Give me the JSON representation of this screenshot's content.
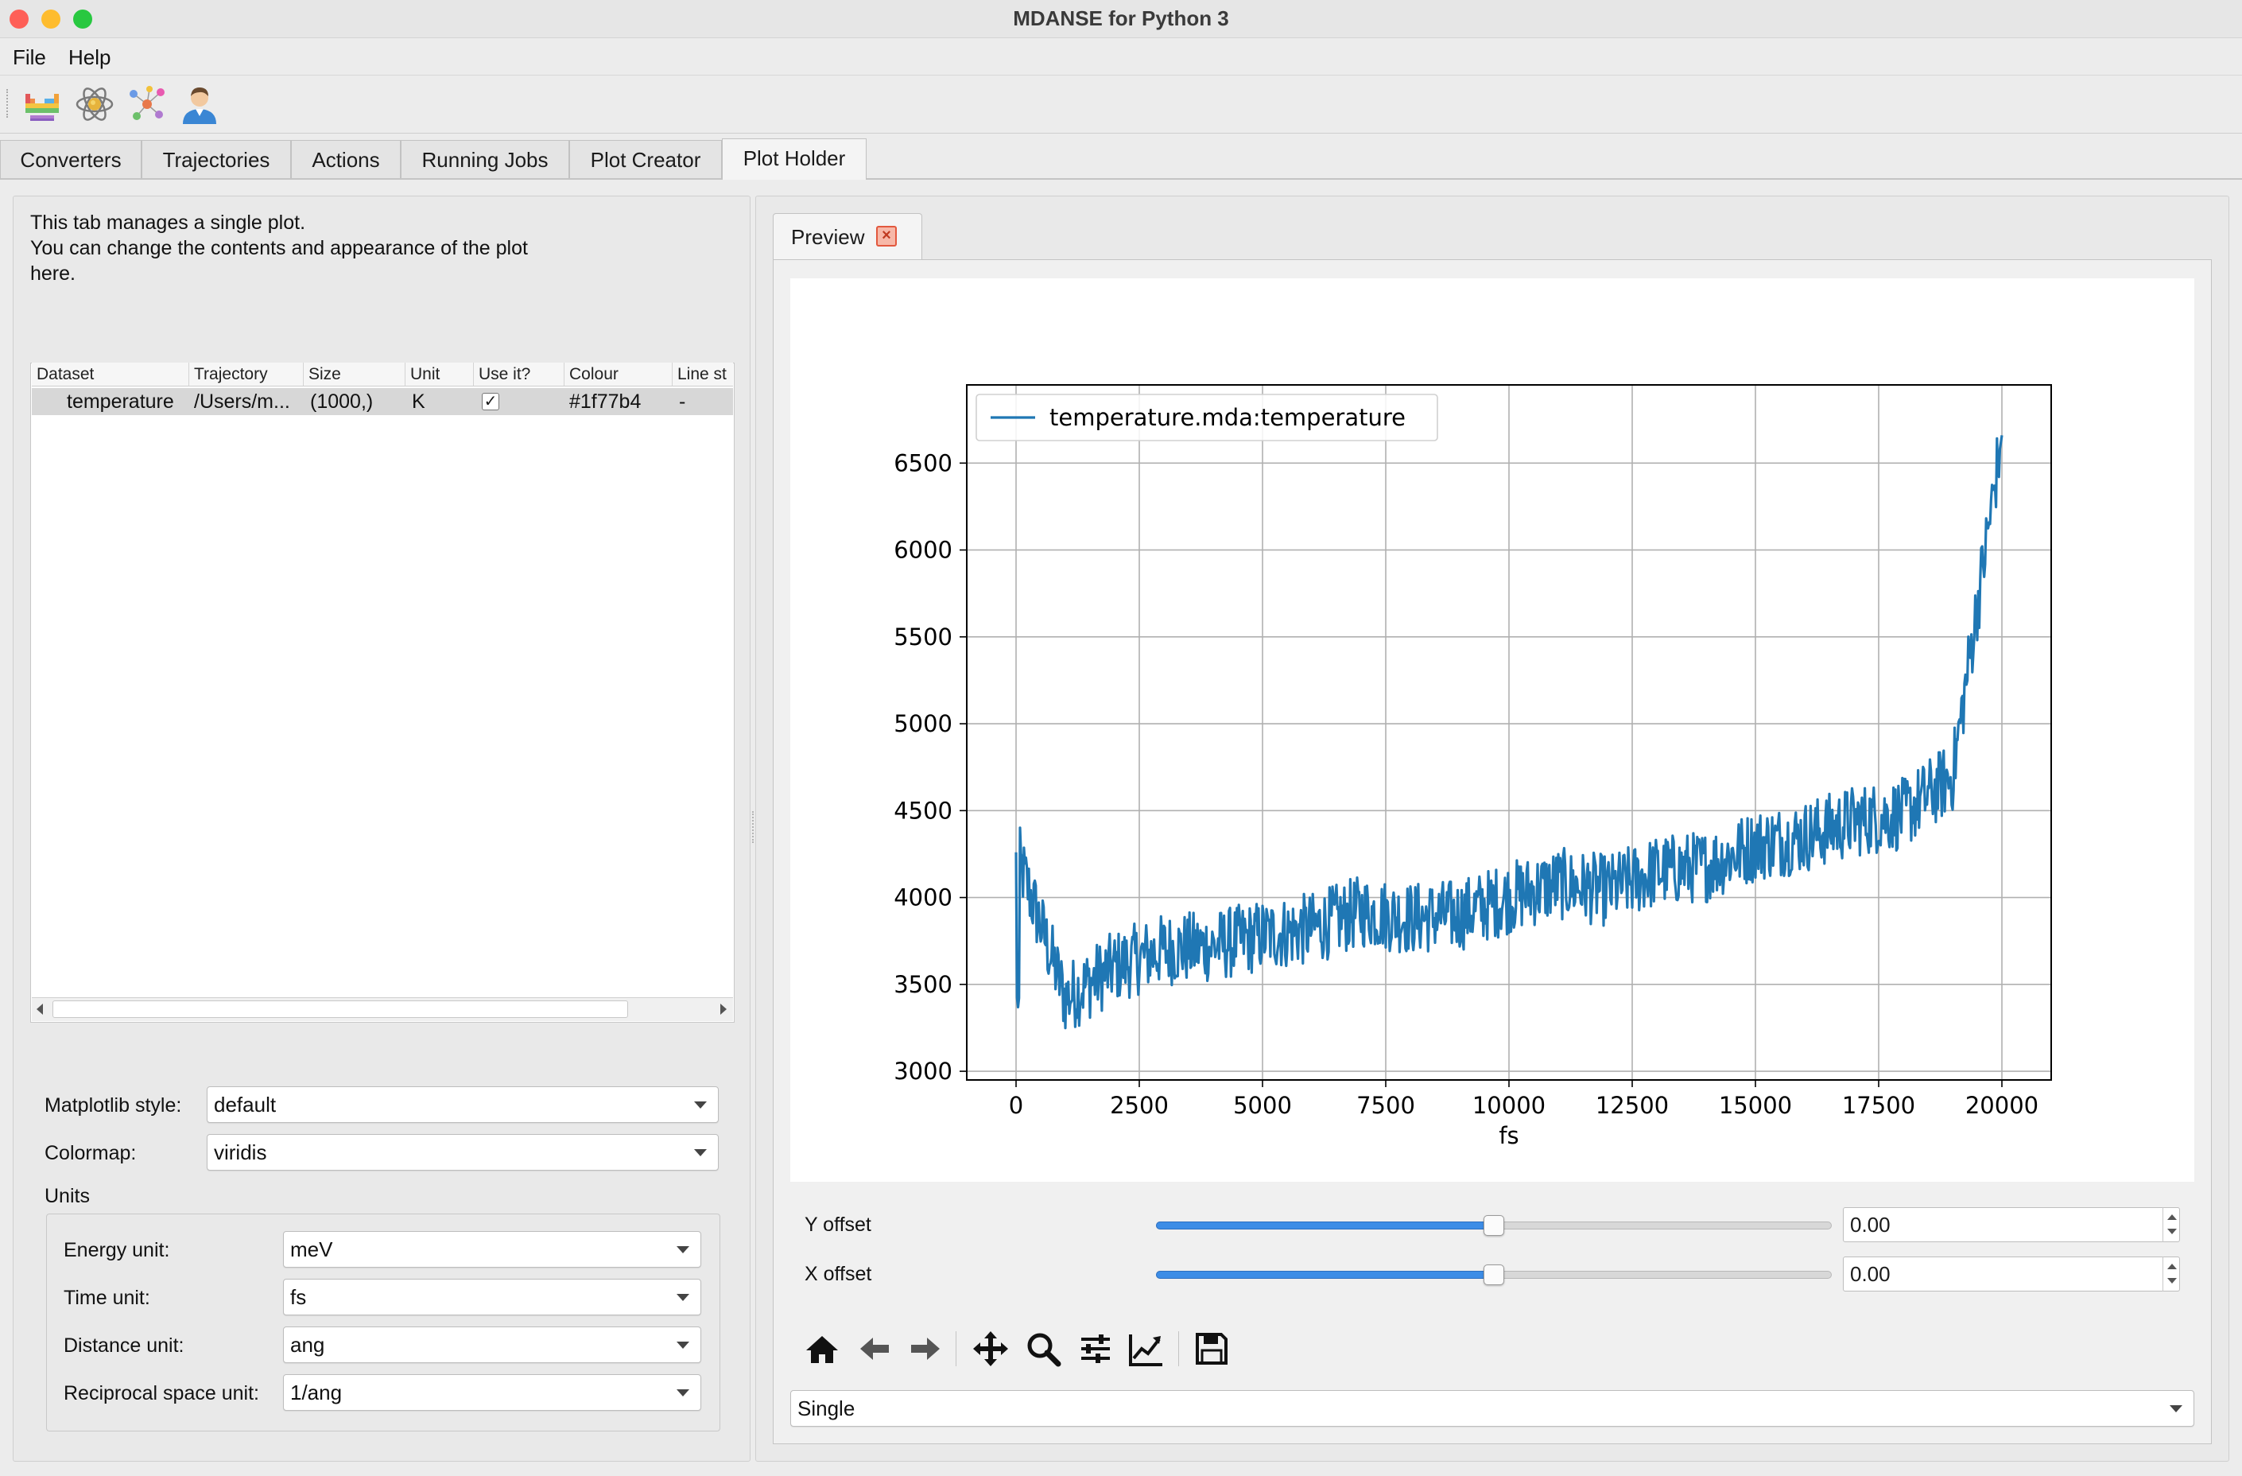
{
  "window": {
    "title": "MDANSE for Python 3",
    "traffic_colors": {
      "close": "#fe5f57",
      "minimize": "#febc2e",
      "zoom": "#28c840"
    }
  },
  "menu": {
    "file": "File",
    "help": "Help"
  },
  "toolbar": {
    "icons": [
      "periodic-table-icon",
      "atom-icon",
      "molecule-network-icon",
      "user-icon"
    ]
  },
  "tabs": [
    {
      "label": "Converters"
    },
    {
      "label": "Trajectories"
    },
    {
      "label": "Actions"
    },
    {
      "label": "Running Jobs"
    },
    {
      "label": "Plot Creator"
    },
    {
      "label": "Plot Holder",
      "active": true
    }
  ],
  "left": {
    "desc_line1": "This tab manages a single plot.",
    "desc_line2": "You can change the contents and appearance of the plot",
    "desc_line3": "here.",
    "table": {
      "headers": [
        "Dataset",
        "Trajectory",
        "Size",
        "Unit",
        "Use it?",
        "Colour",
        "Line st"
      ],
      "rows": [
        {
          "dataset": "temperature",
          "trajectory": "/Users/m...",
          "size": "(1000,)",
          "unit": "K",
          "use": "✓",
          "colour": "#1f77b4",
          "line_style": "-"
        }
      ]
    },
    "style_label": "Matplotlib style:",
    "style_value": "default",
    "colormap_label": "Colormap:",
    "colormap_value": "viridis",
    "units_title": "Units",
    "energy_label": "Energy unit:",
    "energy_value": "meV",
    "time_label": "Time unit:",
    "time_value": "fs",
    "distance_label": "Distance unit:",
    "distance_value": "ang",
    "recip_label": "Reciprocal space unit:",
    "recip_value": "1/ang"
  },
  "right": {
    "preview_tab": "Preview",
    "y_offset_label": "Y offset",
    "y_offset_value": "0.00",
    "x_offset_label": "X offset",
    "x_offset_value": "0.00",
    "slider_level": 0.5,
    "plot_mode": "Single",
    "nav_icons": [
      "home-icon",
      "back-arrow-icon",
      "forward-arrow-icon",
      "pan-icon",
      "zoom-icon",
      "configure-subplots-icon",
      "edit-axes-icon",
      "save-icon"
    ]
  },
  "chart_data": {
    "type": "line",
    "title": "",
    "xlabel": "fs",
    "ylabel": "",
    "xlim": [
      -1000,
      21000
    ],
    "ylim": [
      2950,
      6950
    ],
    "xticks": [
      0,
      2500,
      5000,
      7500,
      10000,
      12500,
      15000,
      17500,
      20000
    ],
    "yticks": [
      3000,
      3500,
      4000,
      4500,
      5000,
      5500,
      6000,
      6500
    ],
    "grid": true,
    "legend_placement": "upper-left",
    "series": [
      {
        "name": "temperature.mda:temperature",
        "color": "#1f77b4",
        "x_start": 0,
        "x_step": 1000,
        "values": [
          4260,
          3420,
          3600,
          3700,
          3720,
          3780,
          3820,
          3920,
          3880,
          3900,
          4000,
          4080,
          4040,
          4150,
          4180,
          4300,
          4350,
          4440,
          4480,
          4700,
          6660
        ]
      }
    ]
  }
}
